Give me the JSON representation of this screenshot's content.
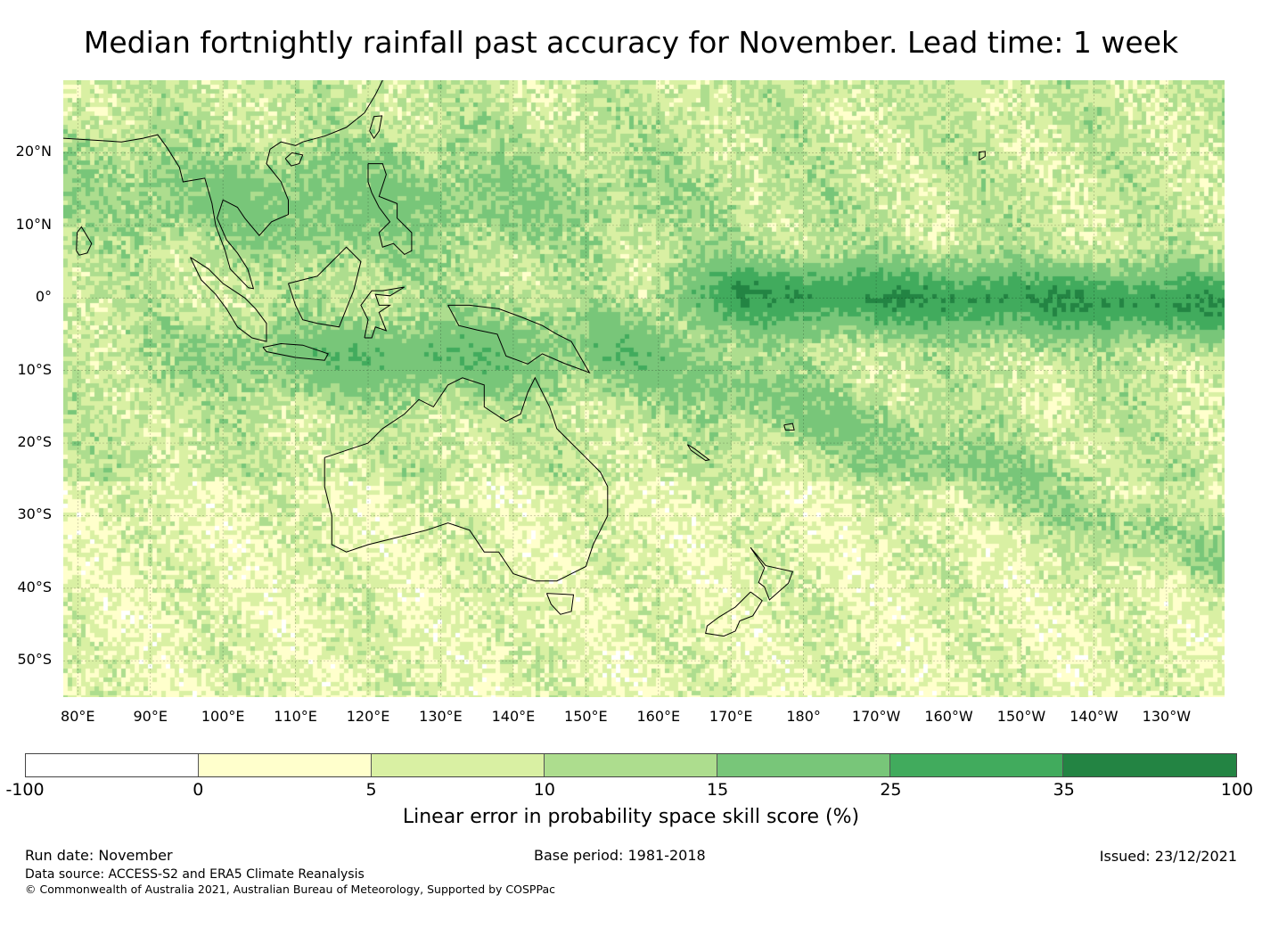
{
  "title": "Median fortnightly rainfall past accuracy for November. Lead time: 1 week",
  "map": {
    "lon_range": [
      78,
      238
    ],
    "lat_range": [
      -55,
      30
    ],
    "lat_ticks": [
      {
        "value": 20,
        "label": "20°N"
      },
      {
        "value": 10,
        "label": "10°N"
      },
      {
        "value": 0,
        "label": "0°"
      },
      {
        "value": -10,
        "label": "10°S"
      },
      {
        "value": -20,
        "label": "20°S"
      },
      {
        "value": -30,
        "label": "30°S"
      },
      {
        "value": -40,
        "label": "40°S"
      },
      {
        "value": -50,
        "label": "50°S"
      }
    ],
    "lon_ticks": [
      {
        "value": 80,
        "label": "80°E"
      },
      {
        "value": 90,
        "label": "90°E"
      },
      {
        "value": 100,
        "label": "100°E"
      },
      {
        "value": 110,
        "label": "110°E"
      },
      {
        "value": 120,
        "label": "120°E"
      },
      {
        "value": 130,
        "label": "130°E"
      },
      {
        "value": 140,
        "label": "140°E"
      },
      {
        "value": 150,
        "label": "150°E"
      },
      {
        "value": 160,
        "label": "160°E"
      },
      {
        "value": 170,
        "label": "170°E"
      },
      {
        "value": 180,
        "label": "180°"
      },
      {
        "value": 190,
        "label": "170°W"
      },
      {
        "value": 200,
        "label": "160°W"
      },
      {
        "value": 210,
        "label": "150°W"
      },
      {
        "value": 220,
        "label": "140°W"
      },
      {
        "value": 230,
        "label": "130°W"
      }
    ]
  },
  "legend": {
    "ticks": [
      "-100",
      "0",
      "5",
      "10",
      "15",
      "25",
      "35",
      "100"
    ],
    "colors": [
      "#ffffff",
      "#ffffcc",
      "#d9f0a3",
      "#addd8e",
      "#78c679",
      "#41ab5d",
      "#238443"
    ],
    "label": "Linear error in probability space skill score (%)"
  },
  "footer": {
    "run_date": "Run date: November",
    "base_period": "Base period: 1981-2018",
    "issued": "Issued: 23/12/2021",
    "data_source": "Data source: ACCESS-S2 and ERA5 Climate Reanalysis",
    "copyright": "© Commonwealth of Australia 2021, Australian Bureau of Meteorology, Supported by COSPPac"
  }
}
